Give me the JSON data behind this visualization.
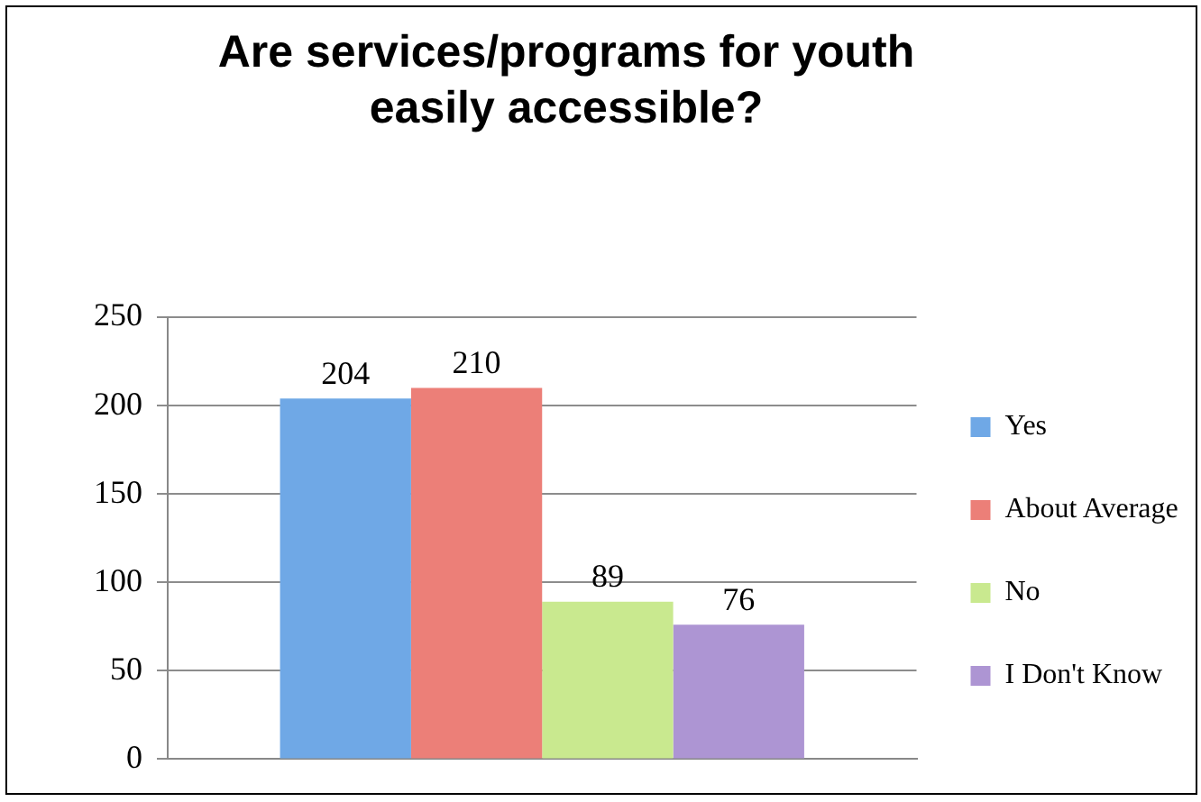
{
  "chart_data": {
    "type": "bar",
    "title": "Are services/programs for youth easily accessible?",
    "categories": [
      null
    ],
    "series": [
      {
        "name": "Yes",
        "color": "#6fa8e6",
        "values": [
          204
        ]
      },
      {
        "name": "About Average",
        "color": "#ec7f78",
        "values": [
          210
        ]
      },
      {
        "name": "No",
        "color": "#c9e98f",
        "values": [
          89
        ]
      },
      {
        "name": "I Don't Know",
        "color": "#ad95d3",
        "values": [
          76
        ]
      }
    ],
    "ylim": [
      0,
      250
    ],
    "yticks": [
      0,
      50,
      100,
      150,
      200,
      250
    ],
    "grid": "y",
    "legend": "right",
    "data_labels": true
  }
}
